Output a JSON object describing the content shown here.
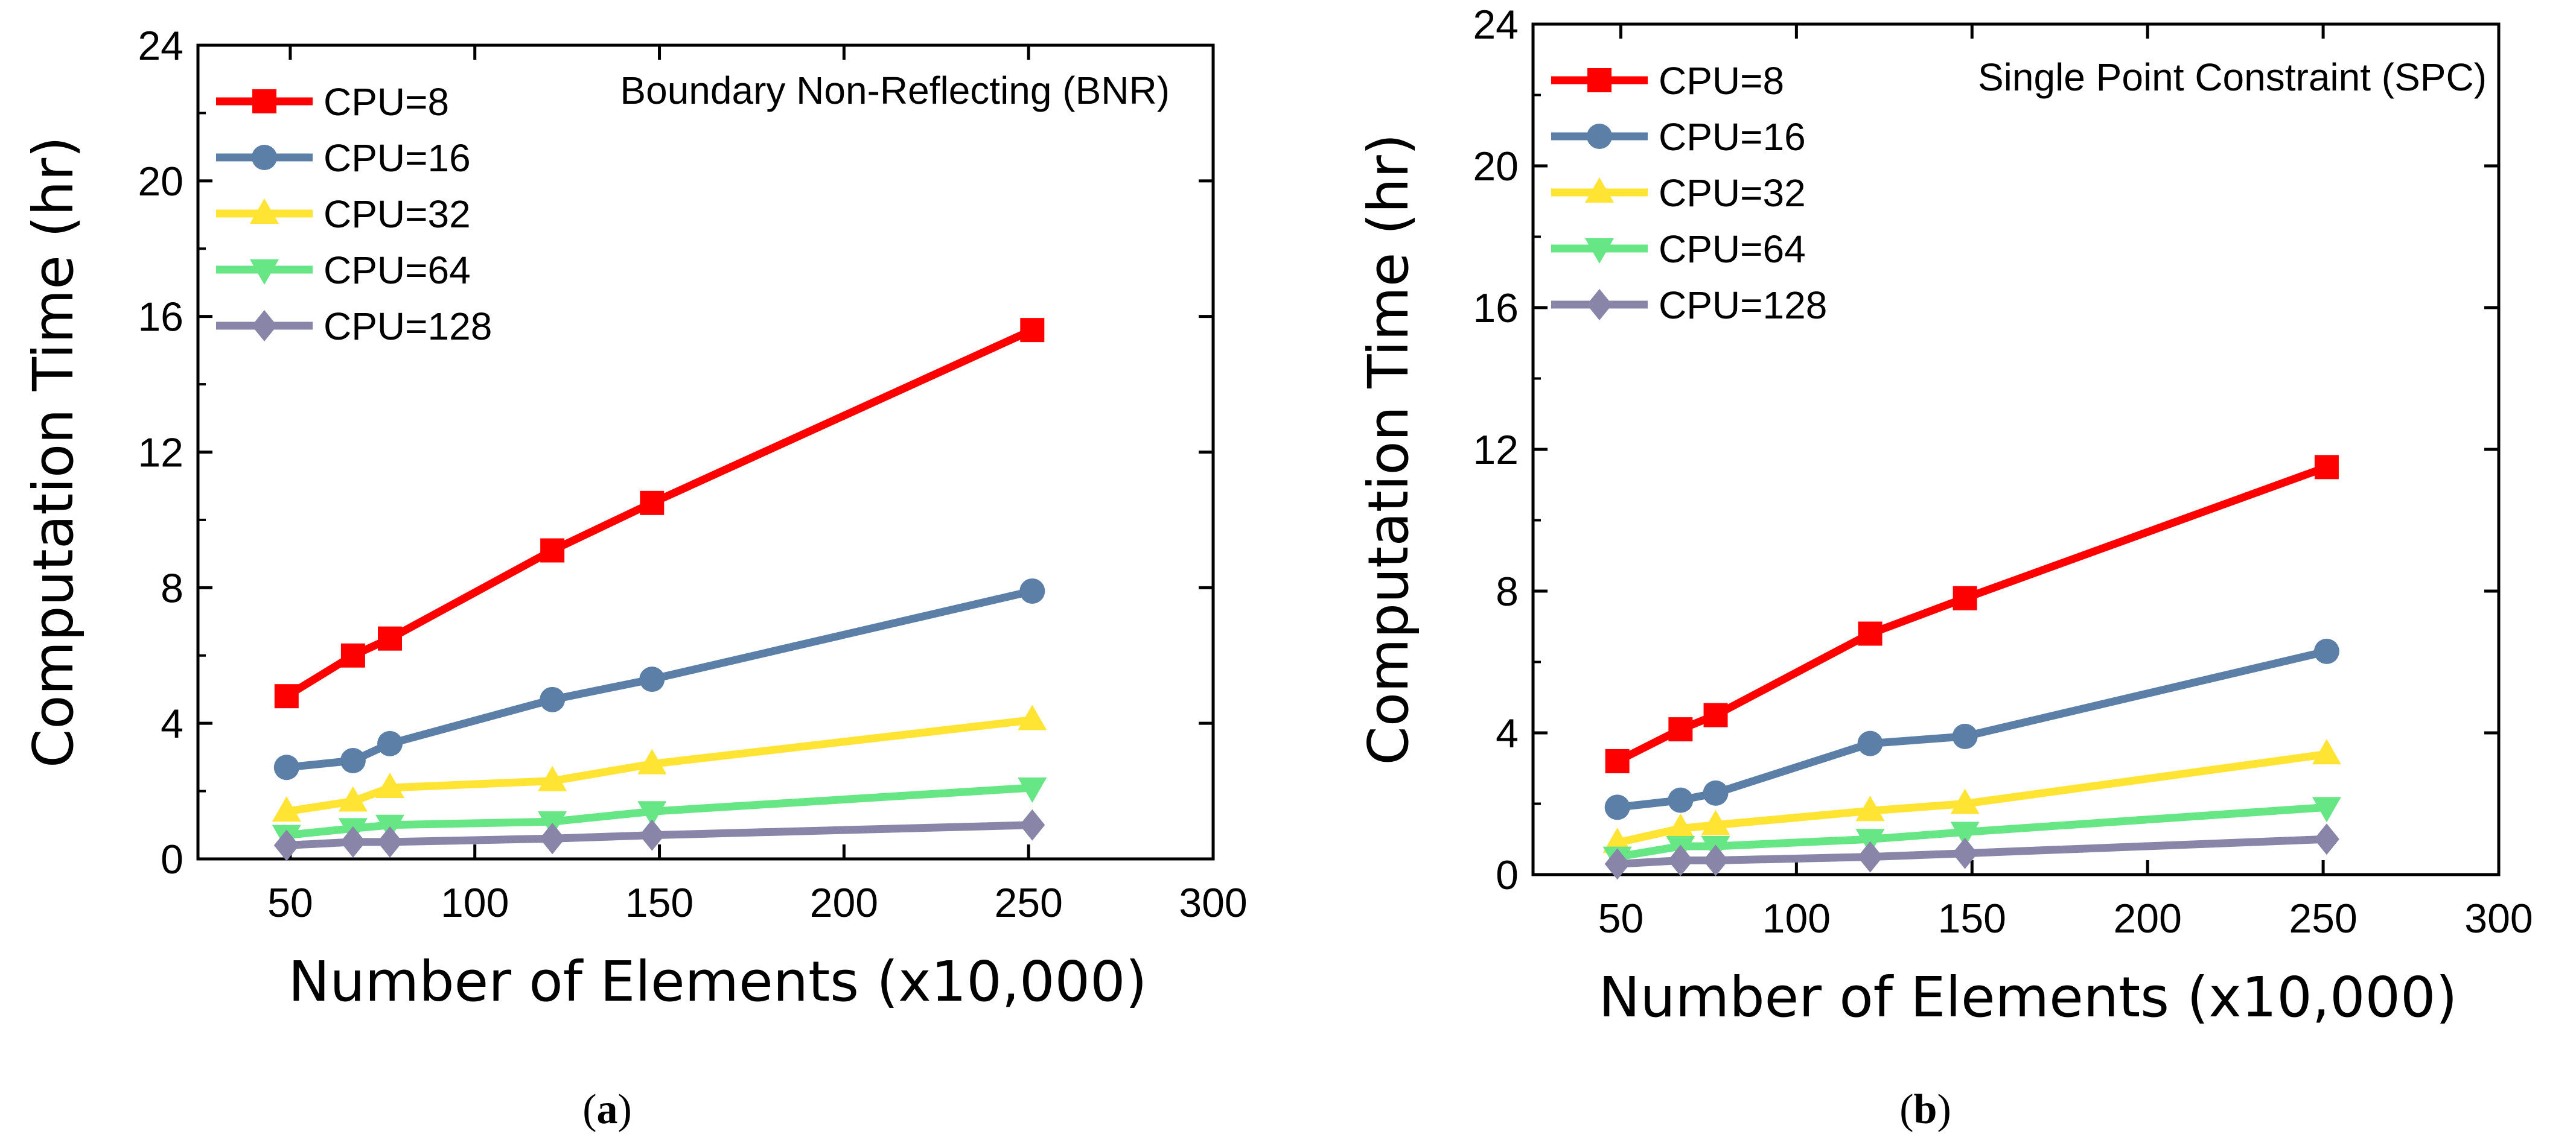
{
  "chart_data": [
    {
      "type": "line",
      "title": "",
      "annotation": "Boundary Non-Reflecting (BNR)",
      "caption_open": "(",
      "caption_letter": "a",
      "caption_close": ")",
      "xlabel": "Number of Elements (x10,000)",
      "ylabel": "Computation Time (hr)",
      "xlim": [
        25,
        300
      ],
      "ylim": [
        0,
        24
      ],
      "xticks": [
        50,
        100,
        150,
        200,
        250,
        300
      ],
      "xtick_labels": [
        "50",
        "100",
        "150",
        "200",
        "250",
        "300"
      ],
      "yticks": [
        0,
        4,
        8,
        12,
        16,
        20,
        24
      ],
      "ytick_labels": [
        "0",
        "4",
        "8",
        "12",
        "16",
        "20",
        "24"
      ],
      "legend_position": "top-left",
      "x": [
        49,
        67,
        77,
        121,
        148,
        251
      ],
      "series": [
        {
          "name": "CPU=8",
          "color": "#ff0000",
          "marker": "square",
          "values": [
            4.8,
            6.0,
            6.5,
            9.1,
            10.5,
            15.6
          ]
        },
        {
          "name": "CPU=16",
          "color": "#5b7fa6",
          "marker": "circle",
          "values": [
            2.7,
            2.9,
            3.4,
            4.7,
            5.3,
            7.9
          ]
        },
        {
          "name": "CPU=32",
          "color": "#ffe433",
          "marker": "triangle-up",
          "values": [
            1.4,
            1.7,
            2.1,
            2.3,
            2.8,
            4.1
          ]
        },
        {
          "name": "CPU=64",
          "color": "#66e685",
          "marker": "triangle-down",
          "values": [
            0.7,
            0.9,
            1.0,
            1.1,
            1.4,
            2.1
          ]
        },
        {
          "name": "CPU=128",
          "color": "#8885a8",
          "marker": "diamond",
          "values": [
            0.4,
            0.5,
            0.5,
            0.6,
            0.7,
            1.0
          ]
        }
      ]
    },
    {
      "type": "line",
      "title": "",
      "annotation": "Single Point Constraint (SPC)",
      "caption_open": "(",
      "caption_letter": "b",
      "caption_close": ")",
      "xlabel": "Number of Elements (x10,000)",
      "ylabel": "Computation Time (hr)",
      "xlim": [
        25,
        300
      ],
      "ylim": [
        0,
        24
      ],
      "xticks": [
        50,
        100,
        150,
        200,
        250,
        300
      ],
      "xtick_labels": [
        "50",
        "100",
        "150",
        "200",
        "250",
        "300"
      ],
      "yticks": [
        0,
        4,
        8,
        12,
        16,
        20,
        24
      ],
      "ytick_labels": [
        "0",
        "4",
        "8",
        "12",
        "16",
        "20",
        "24"
      ],
      "legend_position": "top-left",
      "x": [
        49,
        67,
        77,
        121,
        148,
        251
      ],
      "series": [
        {
          "name": "CPU=8",
          "color": "#ff0000",
          "marker": "square",
          "values": [
            3.2,
            4.1,
            4.5,
            6.8,
            7.8,
            11.5
          ]
        },
        {
          "name": "CPU=16",
          "color": "#5b7fa6",
          "marker": "circle",
          "values": [
            1.9,
            2.1,
            2.3,
            3.7,
            3.9,
            6.3
          ]
        },
        {
          "name": "CPU=32",
          "color": "#ffe433",
          "marker": "triangle-up",
          "values": [
            0.9,
            1.3,
            1.4,
            1.8,
            2.0,
            3.4
          ]
        },
        {
          "name": "CPU=64",
          "color": "#66e685",
          "marker": "triangle-down",
          "values": [
            0.5,
            0.8,
            0.8,
            1.0,
            1.2,
            1.9
          ]
        },
        {
          "name": "CPU=128",
          "color": "#8885a8",
          "marker": "diamond",
          "values": [
            0.3,
            0.4,
            0.4,
            0.5,
            0.6,
            1.0
          ]
        }
      ]
    }
  ]
}
